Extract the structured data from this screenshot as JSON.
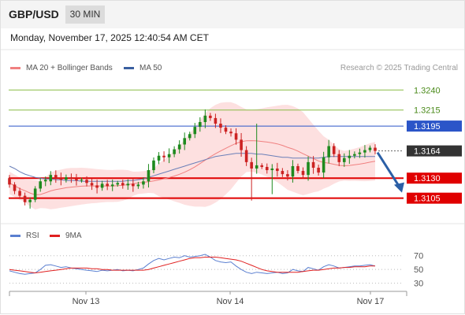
{
  "header": {
    "symbol": "GBP/USD",
    "interval": "30 MIN",
    "datetime": "Monday, November 17, 2025 12:40:54 AM CET"
  },
  "legend": {
    "items": [
      {
        "label": "MA 20 + Bollinger Bands",
        "color": "#f08080"
      },
      {
        "label": "MA 50",
        "color": "#3a5fa0"
      }
    ],
    "credit": "Research © 2025 Trading Central"
  },
  "rsi_legend": {
    "items": [
      {
        "label": "RSI",
        "color": "#5a7fd0"
      },
      {
        "label": "9MA",
        "color": "#e02020"
      }
    ]
  },
  "colors": {
    "bull": "#1e8a1e",
    "bear": "#cc2222",
    "bollinger_fill": "#fde0e0",
    "ma20": "#f08080",
    "ma50": "#6a7fb8",
    "resistance": "#88bb44",
    "pivot": "#2b55c8",
    "support": "#e00000",
    "current": "#333333",
    "arrow": "#2b5fa6",
    "rsi": "#5a7fd0",
    "rsi_ma": "#e02020"
  },
  "chart_data": [
    {
      "type": "candlestick",
      "name": "price",
      "x_tick_labels": [
        "Nov 13",
        "Nov 14",
        "Nov 17"
      ],
      "ylim": [
        1.3085,
        1.3258
      ],
      "bar_count": 72,
      "ohlc_seed": [
        [
          1.313,
          1.3134,
          1.3118,
          1.3122
        ],
        [
          1.3122,
          1.3125,
          1.311,
          1.3114
        ],
        [
          1.3114,
          1.3118,
          1.3104,
          1.3108
        ],
        [
          1.3108,
          1.3112,
          1.3096,
          1.31
        ],
        [
          1.31,
          1.3106,
          1.3092,
          1.3103
        ],
        [
          1.3103,
          1.312,
          1.31,
          1.3117
        ],
        [
          1.3117,
          1.313,
          1.3113,
          1.3126
        ],
        [
          1.3126,
          1.3132,
          1.312,
          1.3128
        ]
      ],
      "closes": [
        1.3124,
        1.3117,
        1.311,
        1.3106,
        1.31,
        1.3098,
        1.3112,
        1.3126,
        1.3134,
        1.313,
        1.3128,
        1.3131,
        1.3129,
        1.3127,
        1.3128,
        1.3124,
        1.3121,
        1.3118,
        1.3123,
        1.312,
        1.3122,
        1.3124,
        1.3121,
        1.3123,
        1.312,
        1.3122,
        1.3126,
        1.314,
        1.3152,
        1.3158,
        1.3156,
        1.316,
        1.3166,
        1.3172,
        1.318,
        1.3185,
        1.3194,
        1.32,
        1.3208,
        1.3205,
        1.3198,
        1.3193,
        1.3188,
        1.3186,
        1.3178,
        1.3165,
        1.315,
        1.3142,
        1.3146,
        1.3144,
        1.314,
        1.3142,
        1.3139,
        1.3135,
        1.3132,
        1.3145,
        1.3139,
        1.3134,
        1.315,
        1.3143,
        1.3137,
        1.3156,
        1.317,
        1.316,
        1.315,
        1.3155,
        1.3158,
        1.316,
        1.3162,
        1.3165,
        1.3168,
        1.3164
      ],
      "ma50": [
        1.3145,
        1.3142,
        1.3138,
        1.3135,
        1.3133,
        1.3131,
        1.313,
        1.3129,
        1.3129,
        1.3128,
        1.3128,
        1.3127,
        1.3127,
        1.3127,
        1.3126,
        1.3126,
        1.3126,
        1.3126,
        1.3126,
        1.3126,
        1.3126,
        1.3126,
        1.3126,
        1.3127,
        1.3127,
        1.3128,
        1.3129,
        1.3131,
        1.3133,
        1.3135,
        1.3137,
        1.3139,
        1.3141,
        1.3143,
        1.3145,
        1.3147,
        1.3149,
        1.3151,
        1.3153,
        1.3155,
        1.3157,
        1.3158,
        1.3159,
        1.316,
        1.3161,
        1.3161,
        1.3161,
        1.3161,
        1.316,
        1.316,
        1.3159,
        1.3158,
        1.3157,
        1.3156,
        1.3156,
        1.3155,
        1.3155,
        1.3155,
        1.3155,
        1.3155,
        1.3155,
        1.3156,
        1.3157,
        1.3157,
        1.3157,
        1.3157,
        1.3157,
        1.3157,
        1.3157,
        1.3157,
        1.3157,
        1.3157
      ],
      "levels": [
        {
          "label": "1.3240",
          "value": 1.324,
          "kind": "resistance"
        },
        {
          "label": "1.3215",
          "value": 1.3215,
          "kind": "resistance"
        },
        {
          "label": "1.3195",
          "value": 1.3195,
          "kind": "pivot"
        },
        {
          "label": "1.3164",
          "value": 1.3164,
          "kind": "current"
        },
        {
          "label": "1.3130",
          "value": 1.313,
          "kind": "support"
        },
        {
          "label": "1.3105",
          "value": 1.3105,
          "kind": "support"
        }
      ],
      "forecast_arrow": {
        "from": 1.3164,
        "to": 1.311
      }
    },
    {
      "type": "line",
      "name": "rsi",
      "ylim": [
        25,
        80
      ],
      "y_ticks": [
        {
          "value": 70,
          "label": "70"
        },
        {
          "value": 50,
          "label": "50"
        },
        {
          "value": 30,
          "label": "30"
        }
      ],
      "series": [
        {
          "name": "RSI",
          "values": [
            48,
            46,
            44,
            43,
            44,
            45,
            50,
            56,
            57,
            55,
            53,
            54,
            52,
            51,
            50,
            49,
            48,
            47,
            49,
            48,
            49,
            50,
            48,
            49,
            48,
            50,
            52,
            58,
            63,
            66,
            64,
            66,
            68,
            67,
            70,
            68,
            69,
            70,
            72,
            68,
            63,
            61,
            60,
            61,
            55,
            50,
            46,
            44,
            46,
            45,
            44,
            45,
            46,
            44,
            45,
            50,
            48,
            47,
            53,
            51,
            49,
            54,
            57,
            55,
            52,
            53,
            54,
            55,
            55,
            56,
            57,
            55
          ]
        },
        {
          "name": "9MA",
          "values": [
            50,
            49,
            48,
            47,
            46,
            45,
            46,
            47,
            48,
            49,
            50,
            51,
            52,
            52,
            52,
            52,
            51,
            51,
            50,
            50,
            49,
            49,
            49,
            49,
            49,
            49,
            49,
            50,
            52,
            54,
            56,
            58,
            60,
            62,
            64,
            66,
            67,
            67,
            68,
            68,
            68,
            67,
            66,
            65,
            64,
            62,
            59,
            56,
            53,
            50,
            48,
            47,
            46,
            46,
            46,
            46,
            46,
            47,
            48,
            49,
            49,
            50,
            51,
            52,
            52,
            53,
            53,
            54,
            54,
            54,
            55,
            55
          ]
        }
      ]
    }
  ]
}
